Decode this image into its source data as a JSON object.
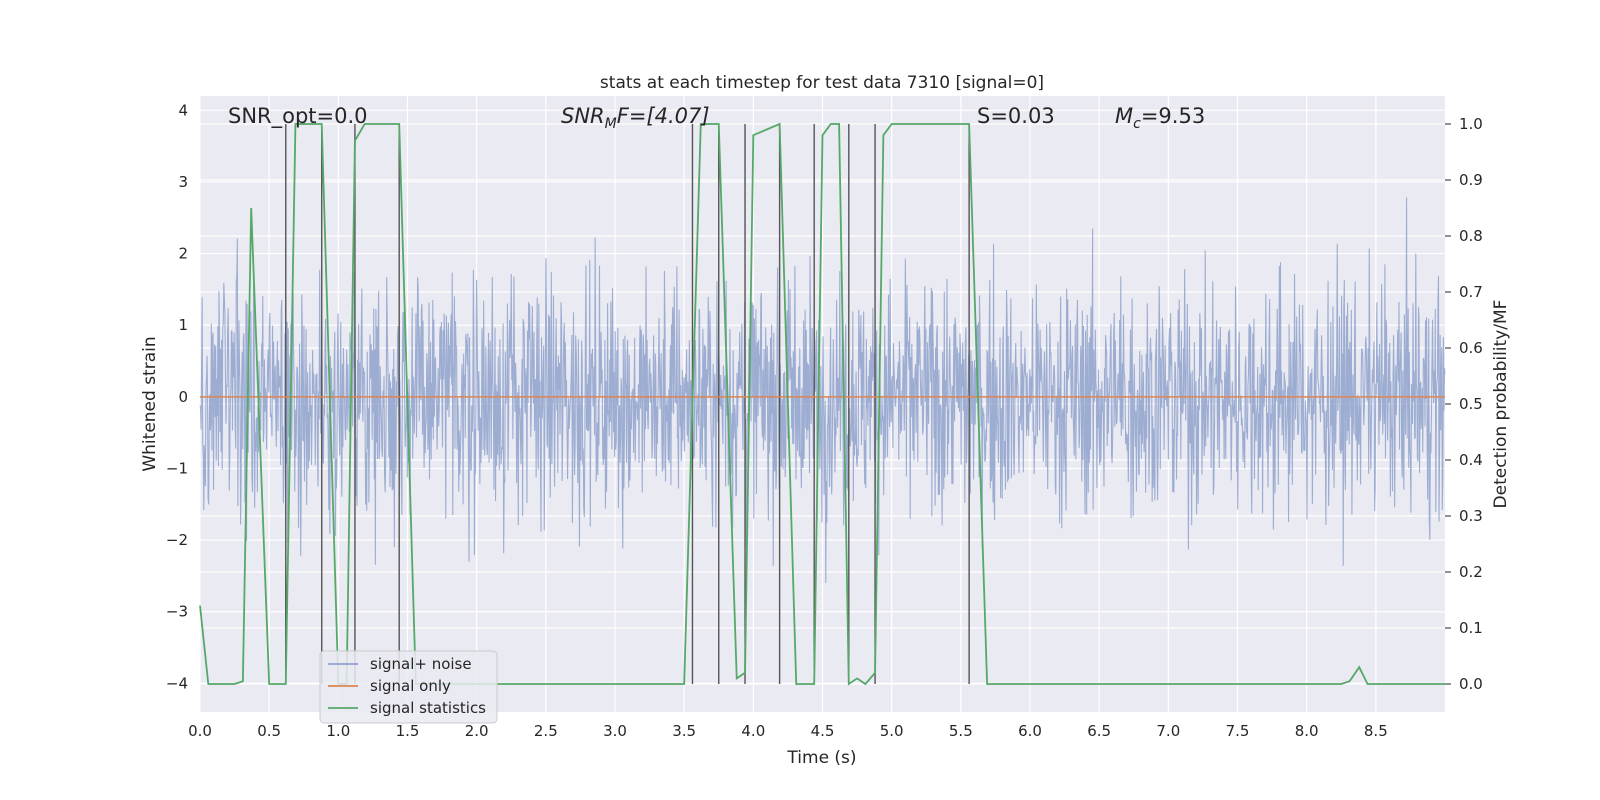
{
  "chart_data": {
    "type": "line",
    "title": "stats at each timestep for test data 7310 [signal=0]",
    "xlabel": "Time (s)",
    "ylabel_left": "Whitened strain",
    "ylabel_right": "Detection probability/MF",
    "xlim": [
      0,
      9.0
    ],
    "ylim_left": [
      -4.4,
      4.2
    ],
    "ylim_right": [
      -0.05,
      1.05
    ],
    "x_ticks": [
      "0.0",
      "0.5",
      "1.0",
      "1.5",
      "2.0",
      "2.5",
      "3.0",
      "3.5",
      "4.0",
      "4.5",
      "5.0",
      "5.5",
      "6.0",
      "6.5",
      "7.0",
      "7.5",
      "8.0",
      "8.5"
    ],
    "y_ticks_left": [
      "4",
      "3",
      "2",
      "1",
      "0",
      "−1",
      "−2",
      "−3",
      "−4"
    ],
    "y_ticks_right": [
      "1.0",
      "0.9",
      "0.8",
      "0.7",
      "0.6",
      "0.5",
      "0.4",
      "0.3",
      "0.2",
      "0.1",
      "0.0"
    ],
    "grid": true,
    "legend_position": "lower-left",
    "annotations": {
      "snr_opt": "SNR_opt=0.0",
      "snr_mf_main": "SNR",
      "snr_mf_sub": "M",
      "snr_mf_rest": "F=[4.07]",
      "s_value": "S=0.03",
      "mc_main": "M",
      "mc_sub": "c",
      "mc_rest": "=9.53"
    },
    "series": [
      {
        "name": "signal+ noise",
        "color": "#8fa2cc",
        "description_values": "whitened strain noise, amplitude approx within [-3.6, 3.8]"
      },
      {
        "name": "signal only",
        "color": "#dd8452",
        "x": [
          0,
          9.0
        ],
        "y": [
          0,
          0
        ]
      },
      {
        "name": "signal statistics",
        "color": "#55a868",
        "x": [
          0.0,
          0.06,
          0.25,
          0.31,
          0.37,
          0.5,
          0.62,
          0.69,
          0.88,
          1.0,
          1.06,
          1.12,
          1.19,
          1.44,
          1.56,
          1.62,
          2.2,
          3.5,
          3.62,
          3.75,
          3.88,
          3.94,
          4.0,
          4.19,
          4.31,
          4.38,
          4.44,
          4.5,
          4.56,
          4.62,
          4.69,
          4.75,
          4.81,
          4.88,
          4.94,
          5.0,
          5.56,
          5.69,
          8.25,
          8.31,
          8.38,
          8.44,
          9.0
        ],
        "y": [
          0.14,
          0.0,
          0.0,
          0.005,
          0.85,
          0.0,
          0.0,
          1.0,
          1.0,
          0.0,
          0.0,
          0.97,
          1.0,
          1.0,
          0.0,
          0.0,
          0.0,
          0.0,
          1.0,
          1.0,
          0.01,
          0.02,
          0.98,
          1.0,
          0.0,
          0.0,
          0.0,
          0.98,
          1.0,
          1.0,
          0.0,
          0.01,
          0.0,
          0.02,
          0.98,
          1.0,
          1.0,
          0.0,
          0.0,
          0.005,
          0.03,
          0.0,
          0.0
        ]
      }
    ],
    "vertical_markers_x": [
      0.62,
      0.88,
      1.12,
      1.44,
      3.56,
      3.75,
      3.94,
      4.19,
      4.44,
      4.69,
      4.88,
      5.56
    ]
  }
}
